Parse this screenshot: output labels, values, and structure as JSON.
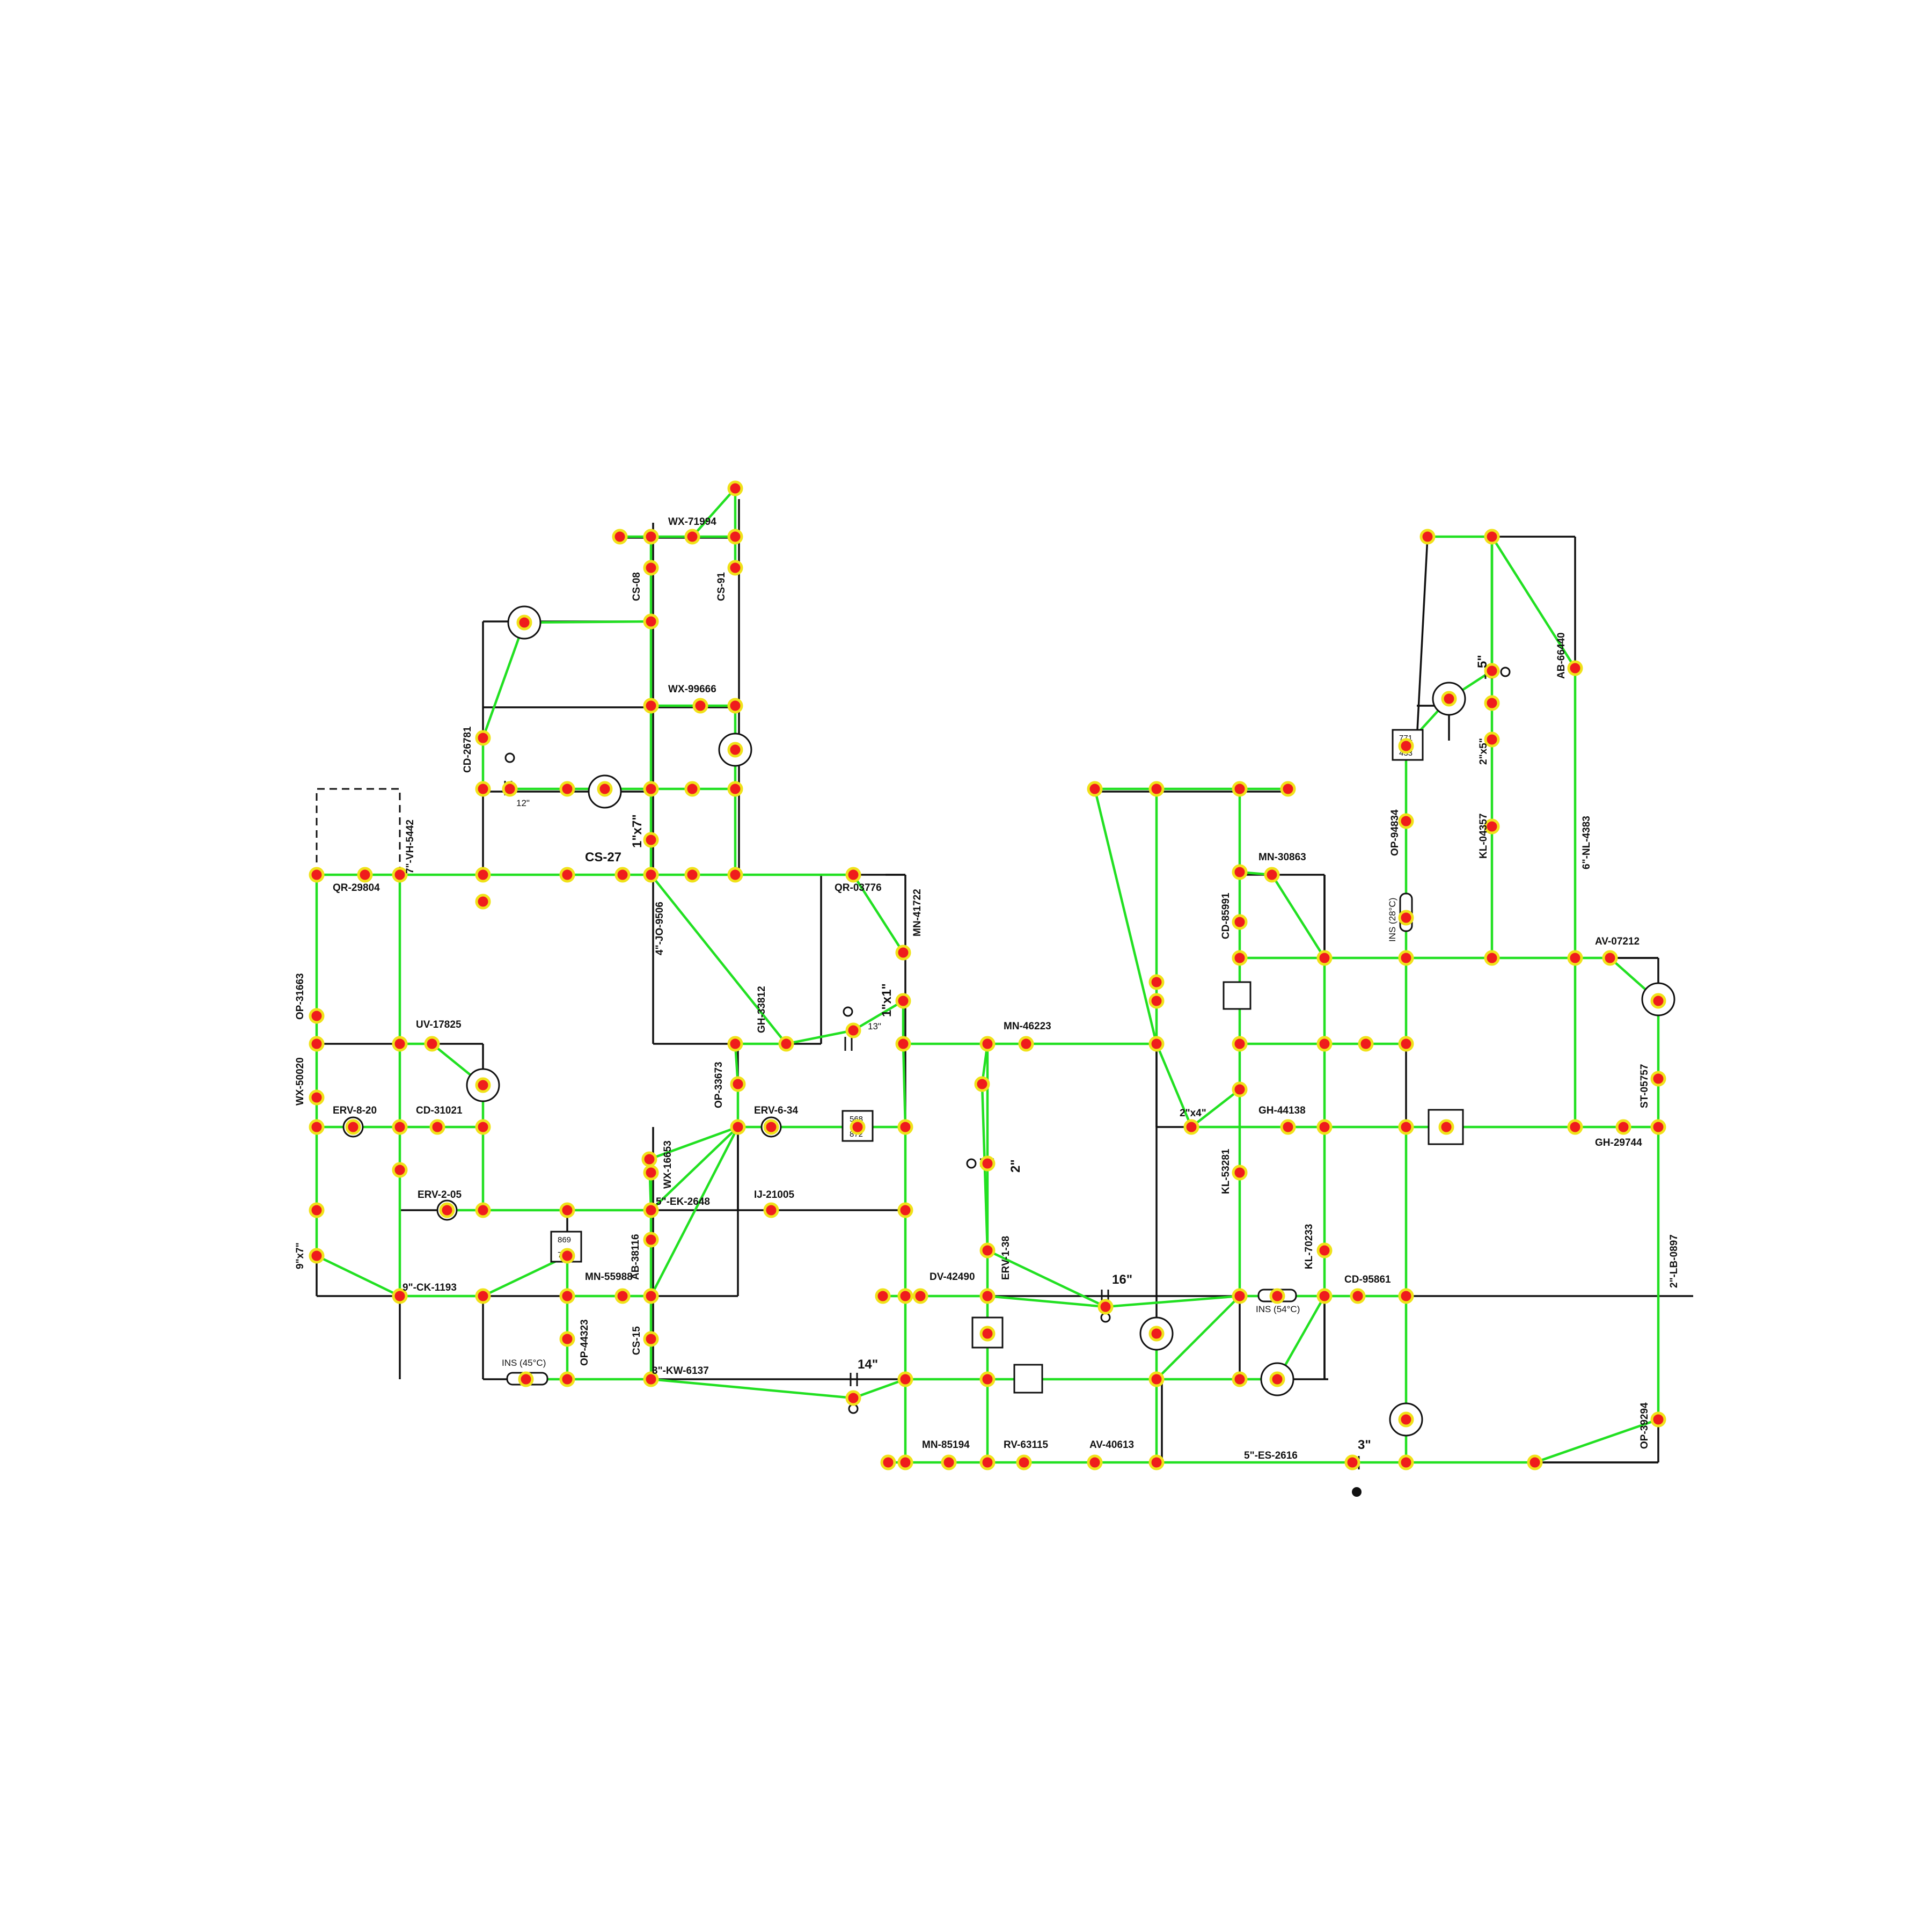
{
  "colors": {
    "pipe": "#111111",
    "graph_edge": "#22e022",
    "node_fill": "#ef1c1c",
    "node_ring": "#f0e21a",
    "background": "#ffffff"
  },
  "labels": {
    "wx71994": "WX-71994",
    "cs08": "CS-08",
    "cs91": "CS-91",
    "wx99666": "WX-99666",
    "cd26781": "CD-26781",
    "size12": "12\"",
    "vh5442": "7\"-VH-5442",
    "qr29804": "QR-29804",
    "cs27": "CS-27",
    "size1x7": "1\"x7\"",
    "qr03776": "QR-03776",
    "mn41722": "MN-41722",
    "jo9506": "4\"-JO-9506",
    "op31663": "OP-31663",
    "uv17825": "UV-17825",
    "gh33812": "GH-33812",
    "size13": "13\"",
    "size1x1": "1\"x1\"",
    "mn46223": "MN-46223",
    "wx50020": "WX-50020",
    "erv820": "ERV-8-20",
    "cd31021": "CD-31021",
    "op33673": "OP-33673",
    "erv634": "ERV-6-34",
    "wx16653": "WX-16653",
    "size2": "2\"",
    "erv205": "ERV-2-05",
    "ek2648": "5\"-EK-2648",
    "ij21005": "IJ-21005",
    "size9x7": "9\"x7\"",
    "ab38116": "AB-38116",
    "ck1193": "9\"-CK-1193",
    "mn55988": "MN-55988",
    "erv138": "ERV-1-38",
    "dv42490": "DV-42490",
    "size16": "16\"",
    "op44323": "OP-44323",
    "cs15": "CS-15",
    "ins45": "INS (45°C)",
    "kw6137": "3\"-KW-6137",
    "size14": "14\"",
    "mn85194": "MN-85194",
    "rv63115": "RV-63115",
    "av40613": "AV-40613",
    "es2616": "5\"-ES-2616",
    "size3": "3\"",
    "mn30863": "MN-30863",
    "cd85991": "CD-85991",
    "size2x4": "2\"x4\"",
    "gh44138": "GH-44138",
    "kl53281": "KL-53281",
    "kl70233": "KL-70233",
    "cd95861": "CD-95861",
    "ins54": "INS (54°C)",
    "size5": "5\"",
    "ab66440": "AB-66440",
    "size2x5": "2\"x5\"",
    "op94834": "OP-94834",
    "kl04357": "KL-04357",
    "nl4383": "6\"-NL-4383",
    "ins28": "INS (28°C)",
    "av07212": "AV-07212",
    "st05757": "ST-05757",
    "gh29744": "GH-29744",
    "lb0897": "2\"-LB-0897",
    "op39294": "OP-39294"
  },
  "instruments": {
    "box_a_top": "771",
    "box_a_bot": "433",
    "box_b_top": "568",
    "box_b_bot": "872",
    "box_c_top": "869",
    "box_c_bot": "786"
  }
}
